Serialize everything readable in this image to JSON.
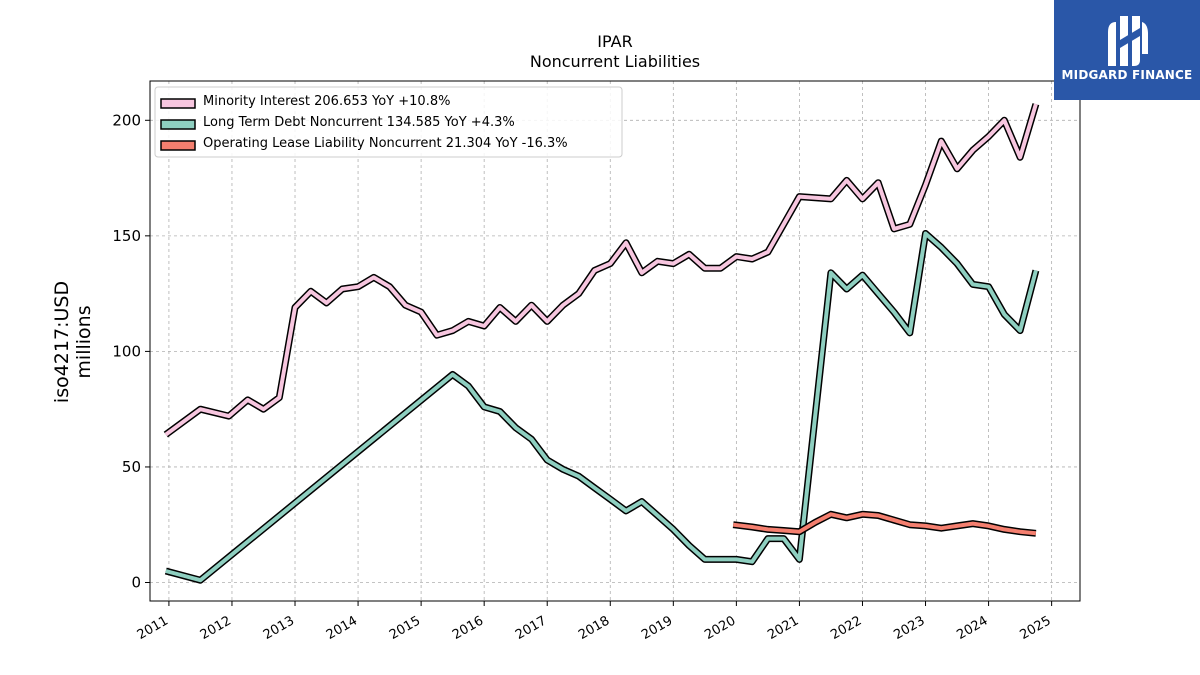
{
  "logo": {
    "text": "MIDGARD FINANCE",
    "icon": "midgard-logo-icon",
    "background": "#2a57a8"
  },
  "chart_data": {
    "type": "line",
    "title": "IPAR",
    "subtitle": "Noncurrent  Liabilities",
    "ylabel_line1": "iso4217:USD",
    "ylabel_line2": "millions",
    "xlabel": "",
    "x_range": [
      2010.7,
      2025.45
    ],
    "ylim": [
      -8,
      217
    ],
    "y_ticks": [
      0,
      50,
      100,
      150,
      200
    ],
    "x_ticks": [
      2011,
      2012,
      2013,
      2014,
      2015,
      2016,
      2017,
      2018,
      2019,
      2020,
      2021,
      2022,
      2023,
      2024,
      2025
    ],
    "grid": true,
    "legend_position": "top-left",
    "series": [
      {
        "name": "Minority Interest",
        "legend_label": "Minority Interest  206.653 YoY +10.8%",
        "color": "#f7c6df",
        "points": [
          [
            2010.95,
            64
          ],
          [
            2011.5,
            75
          ],
          [
            2011.95,
            72
          ],
          [
            2012.25,
            79
          ],
          [
            2012.5,
            75
          ],
          [
            2012.75,
            80
          ],
          [
            2013.0,
            119
          ],
          [
            2013.25,
            126
          ],
          [
            2013.5,
            121
          ],
          [
            2013.75,
            127
          ],
          [
            2014.0,
            128
          ],
          [
            2014.25,
            132
          ],
          [
            2014.5,
            128
          ],
          [
            2014.75,
            120
          ],
          [
            2015.0,
            117
          ],
          [
            2015.25,
            107
          ],
          [
            2015.5,
            109
          ],
          [
            2015.75,
            113
          ],
          [
            2016.0,
            111
          ],
          [
            2016.25,
            119
          ],
          [
            2016.5,
            113
          ],
          [
            2016.75,
            120
          ],
          [
            2017.0,
            113
          ],
          [
            2017.25,
            120
          ],
          [
            2017.5,
            125
          ],
          [
            2017.75,
            135
          ],
          [
            2018.0,
            138
          ],
          [
            2018.25,
            147
          ],
          [
            2018.5,
            134
          ],
          [
            2018.75,
            139
          ],
          [
            2019.0,
            138
          ],
          [
            2019.25,
            142
          ],
          [
            2019.5,
            136
          ],
          [
            2019.75,
            136
          ],
          [
            2020.0,
            141
          ],
          [
            2020.25,
            140
          ],
          [
            2020.5,
            143
          ],
          [
            2020.75,
            155
          ],
          [
            2021.0,
            167
          ],
          [
            2021.5,
            166
          ],
          [
            2021.75,
            174
          ],
          [
            2022.0,
            166
          ],
          [
            2022.25,
            173
          ],
          [
            2022.5,
            153
          ],
          [
            2022.75,
            155
          ],
          [
            2023.0,
            172
          ],
          [
            2023.25,
            191
          ],
          [
            2023.5,
            179
          ],
          [
            2023.75,
            187
          ],
          [
            2024.0,
            193
          ],
          [
            2024.25,
            200
          ],
          [
            2024.5,
            184
          ],
          [
            2024.75,
            207
          ]
        ]
      },
      {
        "name": "Long Term Debt Noncurrent",
        "legend_label": "Long Term Debt Noncurrent  134.585 YoY +4.3%",
        "color": "#8ecfc0",
        "points": [
          [
            2010.95,
            5
          ],
          [
            2011.5,
            1
          ],
          [
            2015.5,
            90
          ],
          [
            2015.75,
            85
          ],
          [
            2016.0,
            76
          ],
          [
            2016.25,
            74
          ],
          [
            2016.5,
            67
          ],
          [
            2016.75,
            62
          ],
          [
            2017.0,
            53
          ],
          [
            2017.25,
            49
          ],
          [
            2017.5,
            46
          ],
          [
            2017.75,
            41
          ],
          [
            2018.0,
            36
          ],
          [
            2018.25,
            31
          ],
          [
            2018.5,
            35
          ],
          [
            2018.75,
            29
          ],
          [
            2019.0,
            23
          ],
          [
            2019.25,
            16
          ],
          [
            2019.5,
            10
          ],
          [
            2019.75,
            10
          ],
          [
            2020.0,
            10
          ],
          [
            2020.25,
            9
          ],
          [
            2020.5,
            19
          ],
          [
            2020.75,
            19
          ],
          [
            2021.0,
            10
          ],
          [
            2021.5,
            134
          ],
          [
            2021.75,
            127
          ],
          [
            2022.0,
            133
          ],
          [
            2022.25,
            125
          ],
          [
            2022.5,
            117
          ],
          [
            2022.75,
            108
          ],
          [
            2023.0,
            151
          ],
          [
            2023.25,
            145
          ],
          [
            2023.5,
            138
          ],
          [
            2023.75,
            129
          ],
          [
            2024.0,
            128
          ],
          [
            2024.25,
            116
          ],
          [
            2024.5,
            109
          ],
          [
            2024.75,
            135
          ]
        ]
      },
      {
        "name": "Operating Lease Liability Noncurrent",
        "legend_label": "Operating Lease Liability Noncurrent  21.304 YoY -16.3%",
        "color": "#f47f6f",
        "points": [
          [
            2019.95,
            25
          ],
          [
            2020.25,
            24
          ],
          [
            2020.5,
            23
          ],
          [
            2020.75,
            22.5
          ],
          [
            2021.0,
            22
          ],
          [
            2021.25,
            26
          ],
          [
            2021.5,
            29.5
          ],
          [
            2021.75,
            28
          ],
          [
            2022.0,
            29.5
          ],
          [
            2022.25,
            29
          ],
          [
            2022.5,
            27
          ],
          [
            2022.75,
            25
          ],
          [
            2023.0,
            24.5
          ],
          [
            2023.25,
            23.5
          ],
          [
            2023.5,
            24.5
          ],
          [
            2023.75,
            25.5
          ],
          [
            2024.0,
            24.5
          ],
          [
            2024.25,
            23
          ],
          [
            2024.5,
            22
          ],
          [
            2024.75,
            21.3
          ]
        ]
      }
    ]
  }
}
